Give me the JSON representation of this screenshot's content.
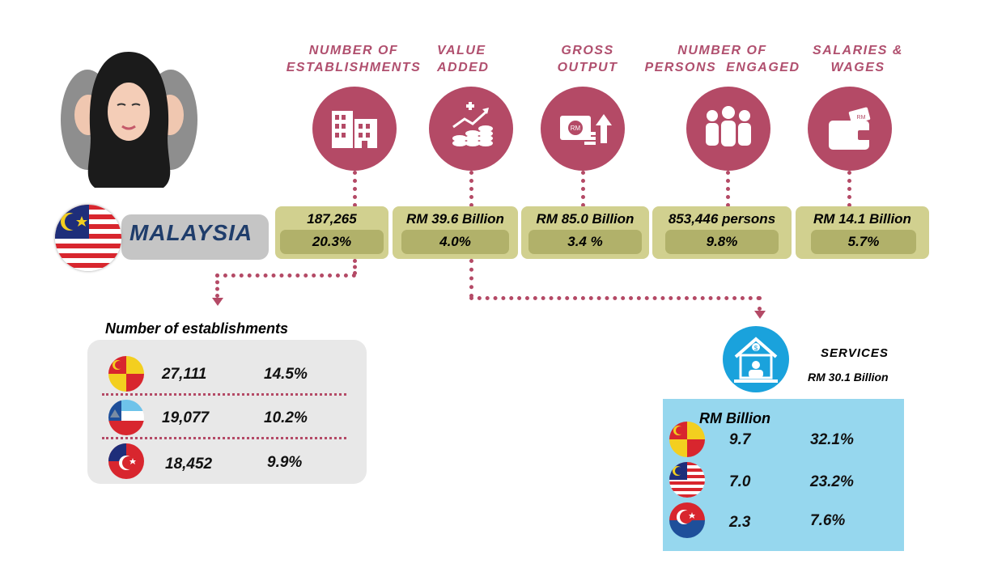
{
  "colors": {
    "accent": "#b44a66",
    "box": "#d1d08f",
    "box_inner": "#b1b16a",
    "services_panel": "#96d7ee"
  },
  "headers": [
    {
      "text": "NUMBER OF\nESTABLISHMENTS",
      "icon": "building-icon"
    },
    {
      "text": "VALUE\nADDED",
      "icon": "coins-growth-icon"
    },
    {
      "text": "GROSS\nOUTPUT",
      "icon": "money-up-icon"
    },
    {
      "text": "NUMBER OF\nPERSONS  ENGAGED",
      "icon": "people-group-icon"
    },
    {
      "text": "SALARIES &\nWAGES",
      "icon": "wallet-icon"
    }
  ],
  "country": {
    "label": "MALAYSIA",
    "flag": "malaysia-flag-icon"
  },
  "stats": [
    {
      "value": "187,265",
      "share": "20.3%"
    },
    {
      "value": "RM 39.6 Billion",
      "share": "4.0%"
    },
    {
      "value": "RM 85.0 Billion",
      "share": "3.4 %"
    },
    {
      "value": "853,446 persons",
      "share": "9.8%"
    },
    {
      "value": "RM 14.1 Billion",
      "share": "5.7%"
    }
  ],
  "establishments": {
    "title": "Number of establishments",
    "rows": [
      {
        "flag": "selangor-flag-icon",
        "value": "27,111",
        "share": "14.5%"
      },
      {
        "flag": "sabah-flag-icon",
        "value": "19,077",
        "share": "10.2%"
      },
      {
        "flag": "johor-flag-icon",
        "value": "18,452",
        "share": "9.9%"
      }
    ]
  },
  "services": {
    "title": "SERVICES",
    "value": "RM 30.1 Billion",
    "unit": "RM Billion",
    "icon": "services-house-icon",
    "rows": [
      {
        "flag": "selangor-flag-icon",
        "value": "9.7",
        "share": "32.1%"
      },
      {
        "flag": "kuala-lumpur-flag-icon",
        "value": "7.0",
        "share": "23.2%"
      },
      {
        "flag": "penang-flag-icon",
        "value": "2.3",
        "share": "7.6%"
      }
    ]
  }
}
